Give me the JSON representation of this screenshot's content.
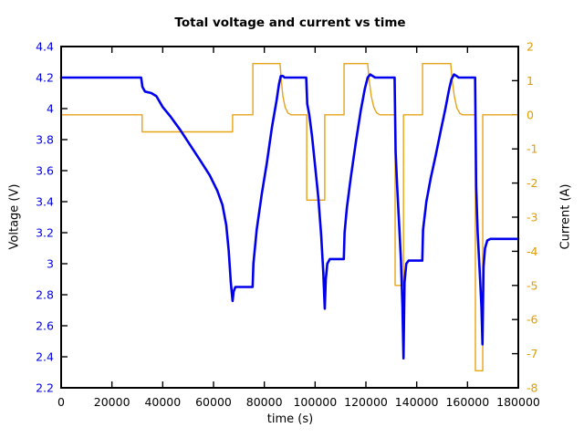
{
  "chart_data": {
    "type": "line",
    "title": "Total voltage and current vs time",
    "xlabel": "time (s)",
    "grid": false,
    "legend": "none",
    "x_axis": {
      "min": 0,
      "max": 180000,
      "ticks": [
        0,
        20000,
        40000,
        60000,
        80000,
        100000,
        120000,
        140000,
        160000,
        180000
      ],
      "tick_labels": [
        "0",
        "20000",
        "40000",
        "60000",
        "80000",
        "100000",
        "120000",
        "140000",
        "160000",
        "180000"
      ],
      "color": "#000000"
    },
    "y_left": {
      "label": "Voltage (V)",
      "min": 2.2,
      "max": 4.4,
      "ticks": [
        4.4,
        4.2,
        4.0,
        3.8,
        3.6,
        3.4,
        3.2,
        3.0,
        2.8,
        2.6,
        2.4,
        2.2
      ],
      "tick_labels": [
        "4.4",
        "4.2",
        "4",
        "3.8",
        "3.6",
        "3.4",
        "3.2",
        "3",
        "2.8",
        "2.6",
        "2.4",
        "2.2"
      ],
      "tick_color": "#0000dd"
    },
    "y_right": {
      "label": "Current (A)",
      "min": -8,
      "max": 2,
      "ticks": [
        2,
        1,
        0,
        -1,
        -2,
        -3,
        -4,
        -5,
        -6,
        -7,
        -8
      ],
      "tick_labels": [
        "2",
        "1",
        "0",
        "-1",
        "-2",
        "-3",
        "-4",
        "-5",
        "-6",
        "-7",
        "-8"
      ],
      "tick_color": "#e09c00"
    },
    "series": [
      {
        "name": "voltage",
        "axis": "left",
        "color": "#0000ee",
        "width": 2.6,
        "points": [
          [
            0,
            4.2
          ],
          [
            31500,
            4.2
          ],
          [
            32000,
            4.14
          ],
          [
            33000,
            4.11
          ],
          [
            35500,
            4.1
          ],
          [
            37500,
            4.08
          ],
          [
            40000,
            4.01
          ],
          [
            43000,
            3.95
          ],
          [
            47000,
            3.86
          ],
          [
            51000,
            3.76
          ],
          [
            55000,
            3.66
          ],
          [
            58500,
            3.57
          ],
          [
            61500,
            3.47
          ],
          [
            63500,
            3.38
          ],
          [
            65000,
            3.25
          ],
          [
            66000,
            3.08
          ],
          [
            66800,
            2.88
          ],
          [
            67500,
            2.76
          ],
          [
            67900,
            2.82
          ],
          [
            68600,
            2.85
          ],
          [
            75400,
            2.85
          ],
          [
            75700,
            3.0
          ],
          [
            77000,
            3.22
          ],
          [
            79000,
            3.45
          ],
          [
            81000,
            3.65
          ],
          [
            83000,
            3.88
          ],
          [
            84800,
            4.05
          ],
          [
            85800,
            4.16
          ],
          [
            86500,
            4.21
          ],
          [
            87300,
            4.21
          ],
          [
            88000,
            4.2
          ],
          [
            96500,
            4.2
          ],
          [
            96900,
            4.03
          ],
          [
            97700,
            3.96
          ],
          [
            98800,
            3.82
          ],
          [
            100000,
            3.63
          ],
          [
            101300,
            3.42
          ],
          [
            102400,
            3.18
          ],
          [
            103200,
            2.95
          ],
          [
            103800,
            2.71
          ],
          [
            104200,
            2.9
          ],
          [
            104800,
            3.0
          ],
          [
            105800,
            3.03
          ],
          [
            111300,
            3.03
          ],
          [
            111600,
            3.2
          ],
          [
            112500,
            3.36
          ],
          [
            114000,
            3.55
          ],
          [
            116000,
            3.78
          ],
          [
            118000,
            3.99
          ],
          [
            119600,
            4.13
          ],
          [
            120700,
            4.2
          ],
          [
            121700,
            4.22
          ],
          [
            122700,
            4.21
          ],
          [
            123600,
            4.2
          ],
          [
            131300,
            4.2
          ],
          [
            131700,
            3.72
          ],
          [
            132300,
            3.5
          ],
          [
            133000,
            3.28
          ],
          [
            133800,
            3.02
          ],
          [
            134400,
            2.72
          ],
          [
            134800,
            2.39
          ],
          [
            135200,
            2.88
          ],
          [
            135900,
            3.0
          ],
          [
            136800,
            3.02
          ],
          [
            142200,
            3.02
          ],
          [
            142500,
            3.22
          ],
          [
            143800,
            3.4
          ],
          [
            145500,
            3.55
          ],
          [
            147500,
            3.7
          ],
          [
            149500,
            3.86
          ],
          [
            151300,
            4.0
          ],
          [
            152700,
            4.12
          ],
          [
            153700,
            4.19
          ],
          [
            154700,
            4.22
          ],
          [
            155700,
            4.21
          ],
          [
            156500,
            4.2
          ],
          [
            163000,
            4.2
          ],
          [
            163400,
            3.5
          ],
          [
            164000,
            3.2
          ],
          [
            164800,
            2.95
          ],
          [
            165500,
            2.72
          ],
          [
            165900,
            2.48
          ],
          [
            166300,
            2.98
          ],
          [
            166900,
            3.1
          ],
          [
            167800,
            3.15
          ],
          [
            169000,
            3.16
          ],
          [
            180000,
            3.16
          ]
        ]
      },
      {
        "name": "current",
        "axis": "right",
        "color": "#e8a317",
        "width": 1.4,
        "points": [
          [
            0,
            0
          ],
          [
            31900,
            0
          ],
          [
            31900,
            -0.5
          ],
          [
            67500,
            -0.5
          ],
          [
            67500,
            0
          ],
          [
            75500,
            0
          ],
          [
            75500,
            1.5
          ],
          [
            86200,
            1.5
          ],
          [
            86700,
            1.0
          ],
          [
            87300,
            0.55
          ],
          [
            88200,
            0.22
          ],
          [
            89300,
            0.05
          ],
          [
            90500,
            0
          ],
          [
            96700,
            0
          ],
          [
            96700,
            -2.5
          ],
          [
            103800,
            -2.5
          ],
          [
            103800,
            0
          ],
          [
            111400,
            0
          ],
          [
            111400,
            1.5
          ],
          [
            120700,
            1.5
          ],
          [
            121300,
            1.0
          ],
          [
            122100,
            0.55
          ],
          [
            123100,
            0.22
          ],
          [
            124200,
            0.06
          ],
          [
            125500,
            0
          ],
          [
            131500,
            0
          ],
          [
            131500,
            -5
          ],
          [
            134800,
            -5
          ],
          [
            134800,
            0
          ],
          [
            142300,
            0
          ],
          [
            142300,
            1.5
          ],
          [
            153400,
            1.5
          ],
          [
            154000,
            1.0
          ],
          [
            154800,
            0.55
          ],
          [
            155800,
            0.2
          ],
          [
            157000,
            0.04
          ],
          [
            158000,
            0
          ],
          [
            163100,
            0
          ],
          [
            163100,
            -7.5
          ],
          [
            166000,
            -7.5
          ],
          [
            166000,
            0
          ],
          [
            180000,
            0
          ]
        ]
      }
    ]
  }
}
